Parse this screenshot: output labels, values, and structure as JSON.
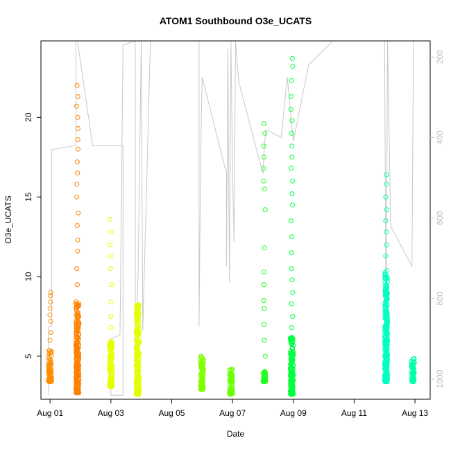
{
  "chart_data": {
    "type": "scatter",
    "title": "ATOM1 Southbound O3e_UCATS",
    "xlabel": "Date",
    "ylabel": "O3e_UCATS",
    "x_ticks": [
      "Aug 01",
      "Aug 03",
      "Aug 05",
      "Aug 07",
      "Aug 09",
      "Aug 11",
      "Aug 13"
    ],
    "y_ticks": [
      5,
      10,
      15,
      20
    ],
    "y2_ticks": [
      200,
      400,
      600,
      800,
      1000
    ],
    "xlim": [
      -0.3,
      12.5
    ],
    "ylim": [
      2.3,
      24.8
    ],
    "y2lim": [
      1050,
      160
    ],
    "y2_reversed": true,
    "grid": false,
    "colors": {
      "axis": "#000000",
      "secondary_axis": "#bebebe",
      "pressure_line": "#c8c8c8"
    },
    "series": [
      {
        "day": 0.0,
        "color": "#ff8c00",
        "dense": [
          3.4,
          5.5
        ],
        "outliers": [
          6.0,
          6.5,
          7.2,
          7.6,
          8.0,
          8.4,
          8.8,
          9.0
        ]
      },
      {
        "day": 0.9,
        "color": "#ff8000",
        "dense": [
          2.7,
          8.5
        ],
        "outliers": [
          9.5,
          10.5,
          11.6,
          12.3,
          13.2,
          14.0,
          15.0,
          15.8,
          16.5,
          17.2,
          18.0,
          18.6,
          19.3,
          20.0,
          20.7,
          21.3,
          22.0
        ]
      },
      {
        "day": 2.0,
        "color": "#e6ff00",
        "dense": [
          3.1,
          6.0
        ],
        "outliers": [
          6.8,
          7.5,
          8.4,
          9.5,
          10.5,
          11.3,
          12.0,
          12.8,
          13.6
        ]
      },
      {
        "day": 2.88,
        "color": "#e2ff00",
        "dense": [
          2.6,
          8.3
        ],
        "outliers": []
      },
      {
        "day": 5.0,
        "color": "#80ff00",
        "dense": [
          2.9,
          5.0
        ],
        "outliers": []
      },
      {
        "day": 5.95,
        "color": "#6aff00",
        "dense": [
          2.6,
          4.3
        ],
        "outliers": []
      },
      {
        "day": 7.05,
        "color": "#20ff20",
        "dense": [
          3.4,
          4.2
        ],
        "outliers": [
          5.0,
          6.0,
          7.0,
          8.0,
          8.5,
          9.5,
          10.3,
          11.8,
          14.2,
          15.5,
          16.0,
          16.8,
          17.5,
          18.2,
          19.0,
          19.6
        ]
      },
      {
        "day": 7.95,
        "color": "#00ff40",
        "dense": [
          2.6,
          6.2
        ],
        "outliers": [
          6.8,
          7.5,
          8.3,
          9.0,
          9.8,
          10.5,
          11.5,
          12.5,
          13.5,
          14.5,
          15.2,
          16.0,
          16.8,
          17.5,
          18.2,
          19.0,
          19.8,
          20.5,
          21.3,
          22.3,
          23.2,
          23.7
        ]
      },
      {
        "day": 11.05,
        "color": "#00ffc0",
        "dense": [
          3.4,
          10.5
        ],
        "outliers": [
          11.3,
          12.0,
          12.8,
          13.5,
          14.2,
          15.0,
          15.8,
          16.4
        ]
      },
      {
        "day": 11.93,
        "color": "#00ffaa",
        "dense": [
          3.4,
          4.9
        ],
        "outliers": []
      }
    ],
    "pressure_path": [
      [
        -0.05,
        1040
      ],
      [
        -0.05,
        870
      ],
      [
        0.05,
        870
      ],
      [
        0.05,
        430
      ],
      [
        0.85,
        420
      ],
      [
        0.85,
        120
      ],
      [
        0.9,
        120
      ],
      [
        1.4,
        420
      ],
      [
        2.4,
        420
      ],
      [
        2.4,
        890
      ],
      [
        2.4,
        1040
      ],
      [
        2.0,
        1040
      ],
      [
        2.0,
        900
      ],
      [
        2.3,
        890
      ],
      [
        2.4,
        170
      ],
      [
        2.8,
        140
      ],
      [
        2.8,
        1040
      ],
      [
        2.9,
        720
      ],
      [
        3.0,
        160
      ],
      [
        3.05,
        880
      ],
      [
        3.3,
        100
      ],
      [
        4.3,
        100
      ],
      [
        4.9,
        140
      ],
      [
        4.9,
        870
      ],
      [
        4.95,
        460
      ],
      [
        5.0,
        250
      ],
      [
        5.8,
        490
      ],
      [
        5.8,
        720
      ],
      [
        5.85,
        180
      ],
      [
        5.9,
        760
      ],
      [
        5.95,
        120
      ],
      [
        6.0,
        480
      ],
      [
        6.05,
        660
      ],
      [
        6.1,
        150
      ],
      [
        6.2,
        260
      ],
      [
        7.0,
        490
      ],
      [
        7.05,
        420
      ],
      [
        7.1,
        380
      ],
      [
        7.6,
        400
      ],
      [
        7.8,
        250
      ],
      [
        8.0,
        410
      ],
      [
        8.5,
        220
      ],
      [
        9.3,
        160
      ],
      [
        10.3,
        120
      ],
      [
        11.0,
        160
      ],
      [
        11.05,
        900
      ],
      [
        11.1,
        150
      ],
      [
        11.2,
        620
      ],
      [
        11.9,
        720
      ],
      [
        11.95,
        130
      ],
      [
        12.0,
        160
      ]
    ]
  }
}
